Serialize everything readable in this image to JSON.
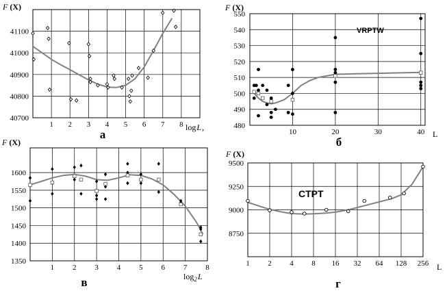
{
  "colors": {
    "curve": "#808080",
    "point": "#000000",
    "grid": "#000000",
    "background": "#ffffff"
  },
  "chart_data": [
    {
      "type": "scatter",
      "panel_letter": "а",
      "ylabel": "F",
      "ylabel_arg": "(X)",
      "xlabel": "log",
      "xlabel_var": "L",
      "xlim": [
        0,
        9
      ],
      "ylim": [
        40700,
        41200
      ],
      "x_ticks": [
        "1",
        "2",
        "3",
        "4",
        "5",
        "6",
        "7",
        "8"
      ],
      "x_tick_values": [
        1,
        2,
        3,
        4,
        5,
        6,
        7,
        8
      ],
      "y_ticks": [
        "40700",
        "40800",
        "40900",
        "41000",
        "41100"
      ],
      "y_tick_values": [
        40700,
        40800,
        40900,
        41000,
        41100
      ],
      "grid": true,
      "series": [
        {
          "marker": "diamond",
          "points": [
            [
              0,
              41090
            ],
            [
              0.05,
              40970
            ],
            [
              0.8,
              41115
            ],
            [
              0.85,
              41065
            ],
            [
              0.9,
              40830
            ],
            [
              1.95,
              41045
            ],
            [
              2.05,
              40785
            ],
            [
              2.35,
              40780
            ],
            [
              3.0,
              41040
            ],
            [
              3.05,
              40985
            ],
            [
              3.1,
              40880
            ],
            [
              3.1,
              40865
            ],
            [
              3.5,
              40850
            ],
            [
              4.0,
              40855
            ],
            [
              4.05,
              40840
            ],
            [
              4.35,
              40895
            ],
            [
              4.4,
              40880
            ],
            [
              4.8,
              40840
            ],
            [
              5.15,
              40880
            ],
            [
              5.2,
              40800
            ],
            [
              5.25,
              40775
            ],
            [
              5.3,
              40825
            ],
            [
              5.35,
              40895
            ],
            [
              5.7,
              40930
            ],
            [
              6.2,
              40885
            ],
            [
              6.5,
              41010
            ],
            [
              7.0,
              41185
            ],
            [
              7.6,
              41195
            ],
            [
              7.7,
              41120
            ]
          ]
        }
      ],
      "fit_curve": [
        [
          0,
          41030
        ],
        [
          0.5,
          41000
        ],
        [
          1,
          40970
        ],
        [
          1.5,
          40945
        ],
        [
          2,
          40922
        ],
        [
          2.5,
          40898
        ],
        [
          3,
          40875
        ],
        [
          3.5,
          40855
        ],
        [
          4,
          40842
        ],
        [
          4.5,
          40840
        ],
        [
          5,
          40850
        ],
        [
          5.5,
          40880
        ],
        [
          6,
          40935
        ],
        [
          6.5,
          41010
        ],
        [
          7,
          41090
        ],
        [
          7.5,
          41160
        ]
      ]
    },
    {
      "type": "scatter",
      "panel_letter": "б",
      "ylabel": "F",
      "ylabel_arg": "(X)",
      "xlabel": "L",
      "inset_label": "VRPTW",
      "xlim": [
        0,
        41
      ],
      "ylim": [
        480,
        550
      ],
      "x_ticks": [
        "10",
        "20",
        "30",
        "40"
      ],
      "x_tick_values": [
        10,
        20,
        30,
        40
      ],
      "y_ticks": [
        "480",
        "490",
        "500",
        "510",
        "520",
        "530",
        "540",
        "550"
      ],
      "y_tick_values": [
        480,
        490,
        500,
        510,
        520,
        530,
        540,
        550
      ],
      "grid": true,
      "series": [
        {
          "marker": "filled-circle",
          "points": [
            [
              1,
              505
            ],
            [
              1,
              497
            ],
            [
              1.5,
              505
            ],
            [
              2,
              515
            ],
            [
              2,
              502
            ],
            [
              2,
              486
            ],
            [
              3,
              505
            ],
            [
              4,
              502
            ],
            [
              4,
              493
            ],
            [
              5,
              497
            ],
            [
              5,
              485
            ],
            [
              5,
              488
            ],
            [
              6,
              490
            ],
            [
              9,
              505
            ],
            [
              9,
              488
            ],
            [
              10,
              515
            ],
            [
              10,
              500
            ],
            [
              10,
              487
            ],
            [
              20,
              535
            ],
            [
              20,
              515
            ],
            [
              20,
              513
            ],
            [
              20,
              507
            ],
            [
              20,
              488
            ],
            [
              40,
              547
            ],
            [
              40,
              525
            ],
            [
              40,
              507
            ],
            [
              40,
              505
            ],
            [
              40,
              503
            ]
          ]
        },
        {
          "marker": "open-square",
          "points": [
            [
              1,
              501
            ],
            [
              2,
              500
            ],
            [
              3,
              497
            ],
            [
              5,
              495
            ],
            [
              10,
              496
            ],
            [
              20,
              511
            ],
            [
              40,
              513
            ]
          ]
        }
      ],
      "fit_curve": [
        [
          1,
          500
        ],
        [
          2,
          497
        ],
        [
          3,
          495
        ],
        [
          4,
          494
        ],
        [
          5,
          493.5
        ],
        [
          6,
          494
        ],
        [
          8,
          496
        ],
        [
          10,
          500
        ],
        [
          12,
          505
        ],
        [
          14,
          508
        ],
        [
          16,
          510
        ],
        [
          18,
          511
        ],
        [
          20,
          512
        ],
        [
          25,
          512.3
        ],
        [
          30,
          512.6
        ],
        [
          35,
          512.9
        ],
        [
          40,
          513.2
        ]
      ]
    },
    {
      "type": "scatter",
      "panel_letter": "в",
      "ylabel": "F",
      "ylabel_arg": "(X)",
      "xlabel": "log",
      "xlabel_sub": "2",
      "xlabel_var": "L",
      "xlim": [
        0,
        8
      ],
      "ylim": [
        1350,
        1670
      ],
      "x_ticks": [
        "1",
        "2",
        "3",
        "4",
        "5",
        "6",
        "7",
        "8"
      ],
      "x_tick_values": [
        1,
        2,
        3,
        4,
        5,
        6,
        7,
        8
      ],
      "y_ticks": [
        "1350",
        "1400",
        "1450",
        "1500",
        "1550",
        "1600"
      ],
      "y_tick_values": [
        1350,
        1400,
        1450,
        1500,
        1550,
        1600
      ],
      "grid": true,
      "series": [
        {
          "marker": "filled-diamond",
          "points": [
            [
              0,
              1585
            ],
            [
              0,
              1565
            ],
            [
              0,
              1520
            ],
            [
              1,
              1610
            ],
            [
              1,
              1570
            ],
            [
              1,
              1540
            ],
            [
              2,
              1615
            ],
            [
              2,
              1580
            ],
            [
              2.3,
              1620
            ],
            [
              2.3,
              1540
            ],
            [
              3,
              1575
            ],
            [
              3,
              1535
            ],
            [
              3,
              1525
            ],
            [
              3.4,
              1595
            ],
            [
              3.4,
              1560
            ],
            [
              3.4,
              1525
            ],
            [
              4.4,
              1625
            ],
            [
              4.4,
              1600
            ],
            [
              4.4,
              1570
            ],
            [
              5,
              1595
            ],
            [
              5,
              1570
            ],
            [
              5.8,
              1625
            ],
            [
              5.8,
              1580
            ],
            [
              5.8,
              1545
            ],
            [
              6.8,
              1520
            ],
            [
              6.8,
              1515
            ],
            [
              7.7,
              1445
            ],
            [
              7.7,
              1440
            ],
            [
              7.7,
              1405
            ]
          ]
        },
        {
          "marker": "open-square",
          "points": [
            [
              0,
              1565
            ],
            [
              1,
              1572
            ],
            [
              2,
              1590
            ],
            [
              2.3,
              1580
            ],
            [
              3,
              1548
            ],
            [
              3.4,
              1568
            ],
            [
              4.4,
              1592
            ],
            [
              5,
              1580
            ],
            [
              5.8,
              1580
            ],
            [
              6.8,
              1510
            ],
            [
              7.7,
              1425
            ]
          ]
        }
      ],
      "fit_curve": [
        [
          0,
          1565
        ],
        [
          0.5,
          1575
        ],
        [
          1,
          1585
        ],
        [
          1.5,
          1592
        ],
        [
          2,
          1595
        ],
        [
          2.5,
          1590
        ],
        [
          3,
          1580
        ],
        [
          3.5,
          1578
        ],
        [
          4,
          1585
        ],
        [
          4.5,
          1594
        ],
        [
          5,
          1592
        ],
        [
          5.5,
          1582
        ],
        [
          6,
          1565
        ],
        [
          6.5,
          1538
        ],
        [
          7,
          1505
        ],
        [
          7.5,
          1460
        ],
        [
          7.8,
          1425
        ]
      ]
    },
    {
      "type": "scatter",
      "panel_letter": "г",
      "ylabel": "F",
      "ylabel_arg": "(X)",
      "xlabel": "L",
      "inset_label": "CTPT",
      "xlim": [
        1,
        256
      ],
      "log2_x": true,
      "ylim": [
        8500,
        9500
      ],
      "x_ticks": [
        "1",
        "2",
        "4",
        "8",
        "16",
        "32",
        "64",
        "128",
        "256"
      ],
      "x_tick_values": [
        1,
        2,
        4,
        8,
        16,
        32,
        64,
        128,
        256
      ],
      "y_ticks": [
        "8750",
        "9000",
        "9250",
        "9500"
      ],
      "y_tick_values": [
        8750,
        9000,
        9250,
        9500
      ],
      "grid": true,
      "series": [
        {
          "marker": "open-circle",
          "points": [
            [
              1,
              9095
            ],
            [
              2,
              8995
            ],
            [
              4,
              8975
            ],
            [
              6,
              8960
            ],
            [
              12,
              9000
            ],
            [
              24,
              8985
            ],
            [
              40,
              9095
            ],
            [
              90,
              9130
            ],
            [
              140,
              9175
            ],
            [
              256,
              9460
            ]
          ]
        }
      ],
      "fit_curve": [
        [
          1,
          9080
        ],
        [
          1.5,
          9035
        ],
        [
          2,
          9005
        ],
        [
          3,
          8975
        ],
        [
          4,
          8960
        ],
        [
          6,
          8955
        ],
        [
          8,
          8958
        ],
        [
          12,
          8965
        ],
        [
          16,
          8975
        ],
        [
          24,
          9000
        ],
        [
          32,
          9025
        ],
        [
          48,
          9060
        ],
        [
          64,
          9085
        ],
        [
          96,
          9120
        ],
        [
          128,
          9160
        ],
        [
          180,
          9270
        ],
        [
          256,
          9460
        ]
      ]
    }
  ]
}
